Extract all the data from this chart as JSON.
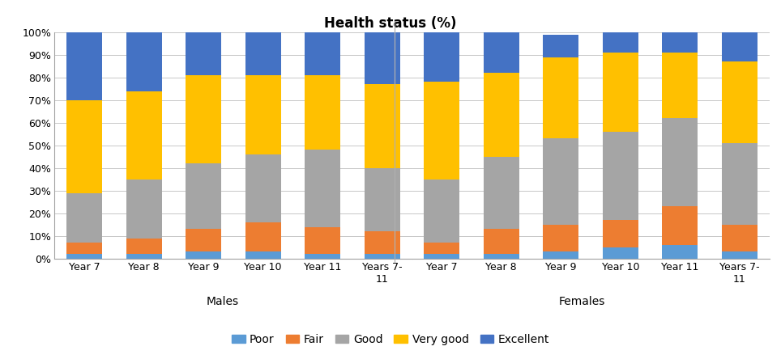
{
  "title": "Health status (%)",
  "categories_males": [
    "Year 7",
    "Year 8",
    "Year 9",
    "Year 10",
    "Year 11",
    "Years 7-\n11"
  ],
  "categories_females": [
    "Year 7",
    "Year 8",
    "Year 9",
    "Year 10",
    "Year 11",
    "Years 7-\n11"
  ],
  "group_labels": [
    "Males",
    "Females"
  ],
  "legend_labels": [
    "Poor",
    "Fair",
    "Good",
    "Very good",
    "Excellent"
  ],
  "colors": [
    "#5b9bd5",
    "#ed7d31",
    "#a5a5a5",
    "#ffc000",
    "#4472c4"
  ],
  "males": {
    "Poor": [
      2,
      2,
      3,
      3,
      2,
      2
    ],
    "Fair": [
      5,
      7,
      10,
      13,
      12,
      10
    ],
    "Good": [
      22,
      26,
      29,
      30,
      34,
      28
    ],
    "Very good": [
      41,
      39,
      39,
      35,
      33,
      37
    ],
    "Excellent": [
      30,
      26,
      19,
      19,
      19,
      23
    ]
  },
  "females": {
    "Poor": [
      2,
      2,
      3,
      5,
      6,
      3
    ],
    "Fair": [
      5,
      11,
      12,
      12,
      17,
      12
    ],
    "Good": [
      28,
      32,
      38,
      39,
      39,
      36
    ],
    "Very good": [
      43,
      37,
      36,
      35,
      29,
      36
    ],
    "Excellent": [
      22,
      18,
      10,
      9,
      9,
      13
    ]
  },
  "ylim": [
    0,
    1.0
  ],
  "yticks": [
    0,
    0.1,
    0.2,
    0.3,
    0.4,
    0.5,
    0.6,
    0.7,
    0.8,
    0.9,
    1.0
  ],
  "ytick_labels": [
    "0%",
    "10%",
    "20%",
    "30%",
    "40%",
    "50%",
    "60%",
    "70%",
    "80%",
    "90%",
    "100%"
  ],
  "background_color": "#ffffff",
  "title_fontsize": 12,
  "label_fontsize": 10,
  "tick_fontsize": 9
}
